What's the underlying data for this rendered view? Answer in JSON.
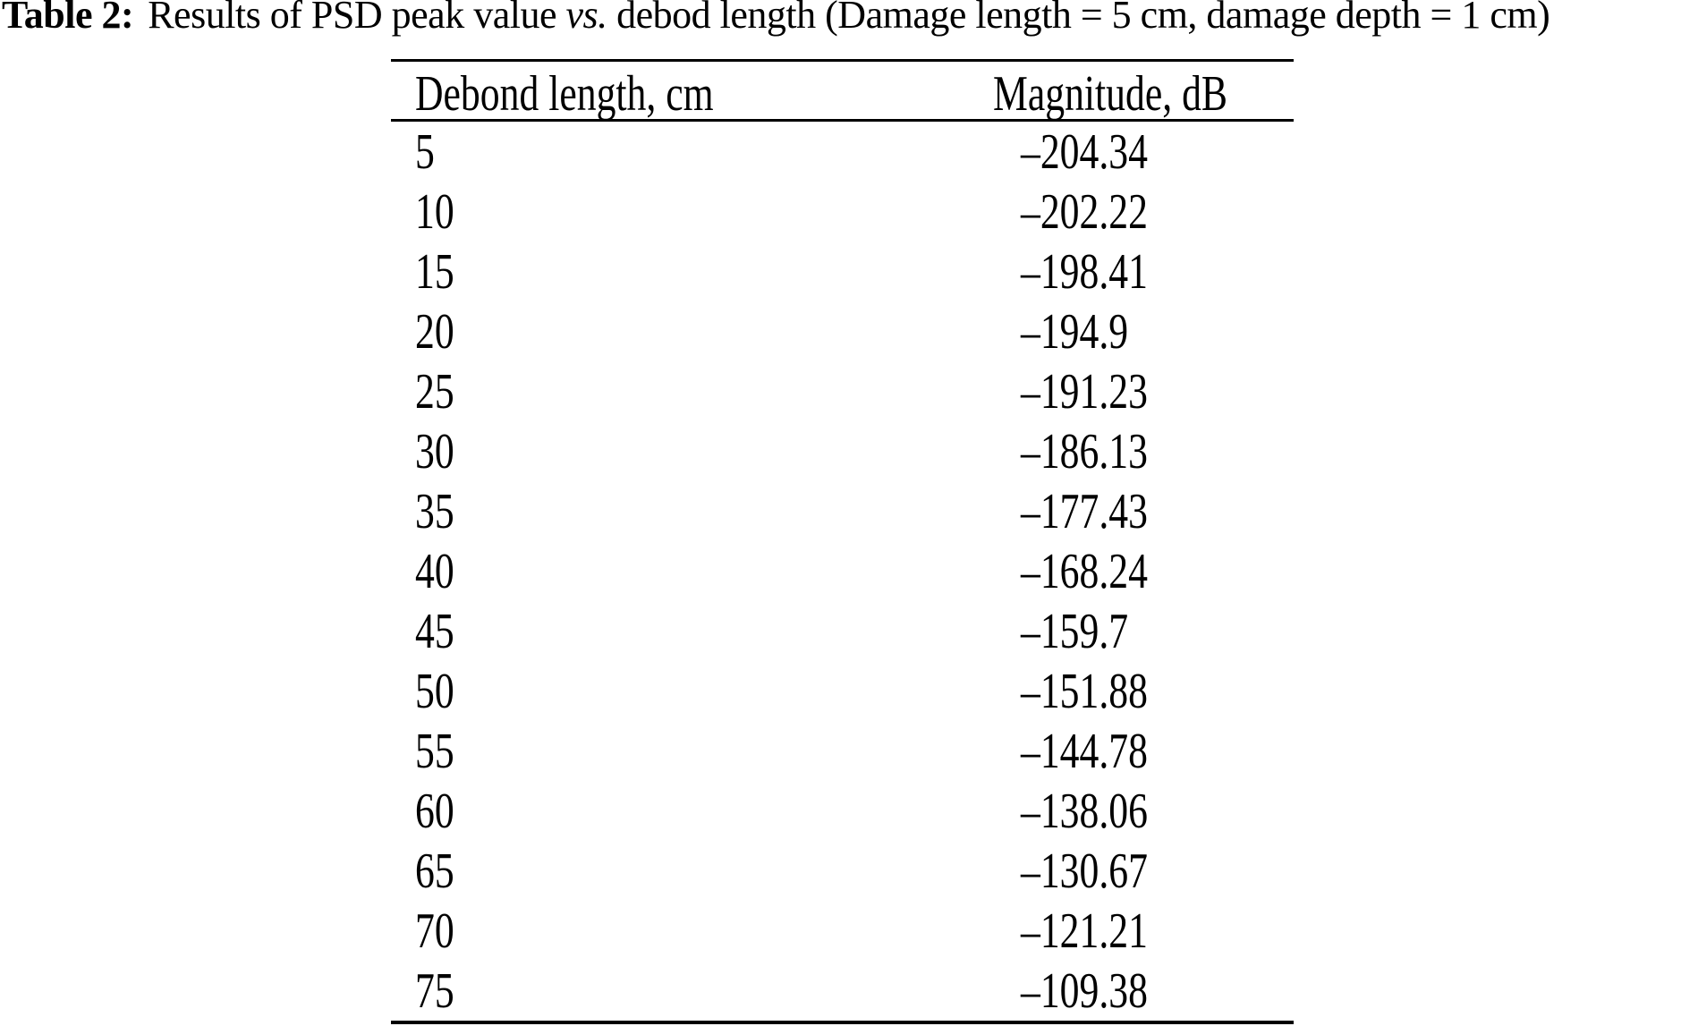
{
  "page": {
    "background": "#ffffff",
    "text_color": "#000000",
    "rule_color": "#000000"
  },
  "caption": {
    "label": "Table 2:",
    "text_before_vs": "Results of PSD peak value",
    "vs": "vs.",
    "text_after_vs": "debod length (Damage length = 5 cm, damage depth = 1 cm)"
  },
  "table": {
    "columns": [
      "Debond length, cm",
      "Magnitude, dB"
    ],
    "rows": [
      [
        "5",
        "–204.34"
      ],
      [
        "10",
        "–202.22"
      ],
      [
        "15",
        "–198.41"
      ],
      [
        "20",
        "–194.9"
      ],
      [
        "25",
        "–191.23"
      ],
      [
        "30",
        "–186.13"
      ],
      [
        "35",
        "–177.43"
      ],
      [
        "40",
        "–168.24"
      ],
      [
        "45",
        "–159.7"
      ],
      [
        "50",
        "–151.88"
      ],
      [
        "55",
        "–144.78"
      ],
      [
        "60",
        "–138.06"
      ],
      [
        "65",
        "–130.67"
      ],
      [
        "70",
        "–121.21"
      ],
      [
        "75",
        "–109.38"
      ]
    ]
  },
  "chart_data": {
    "type": "table",
    "title": "Table 2: Results of PSD peak value vs. debod length (Damage length = 5 cm, damage depth = 1 cm)",
    "columns": [
      "Debond length, cm",
      "Magnitude, dB"
    ],
    "x": [
      5,
      10,
      15,
      20,
      25,
      30,
      35,
      40,
      45,
      50,
      55,
      60,
      65,
      70,
      75
    ],
    "series": [
      {
        "name": "Magnitude, dB",
        "values": [
          -204.34,
          -202.22,
          -198.41,
          -194.9,
          -191.23,
          -186.13,
          -177.43,
          -168.24,
          -159.7,
          -151.88,
          -144.78,
          -138.06,
          -130.67,
          -121.21,
          -109.38
        ]
      }
    ]
  }
}
